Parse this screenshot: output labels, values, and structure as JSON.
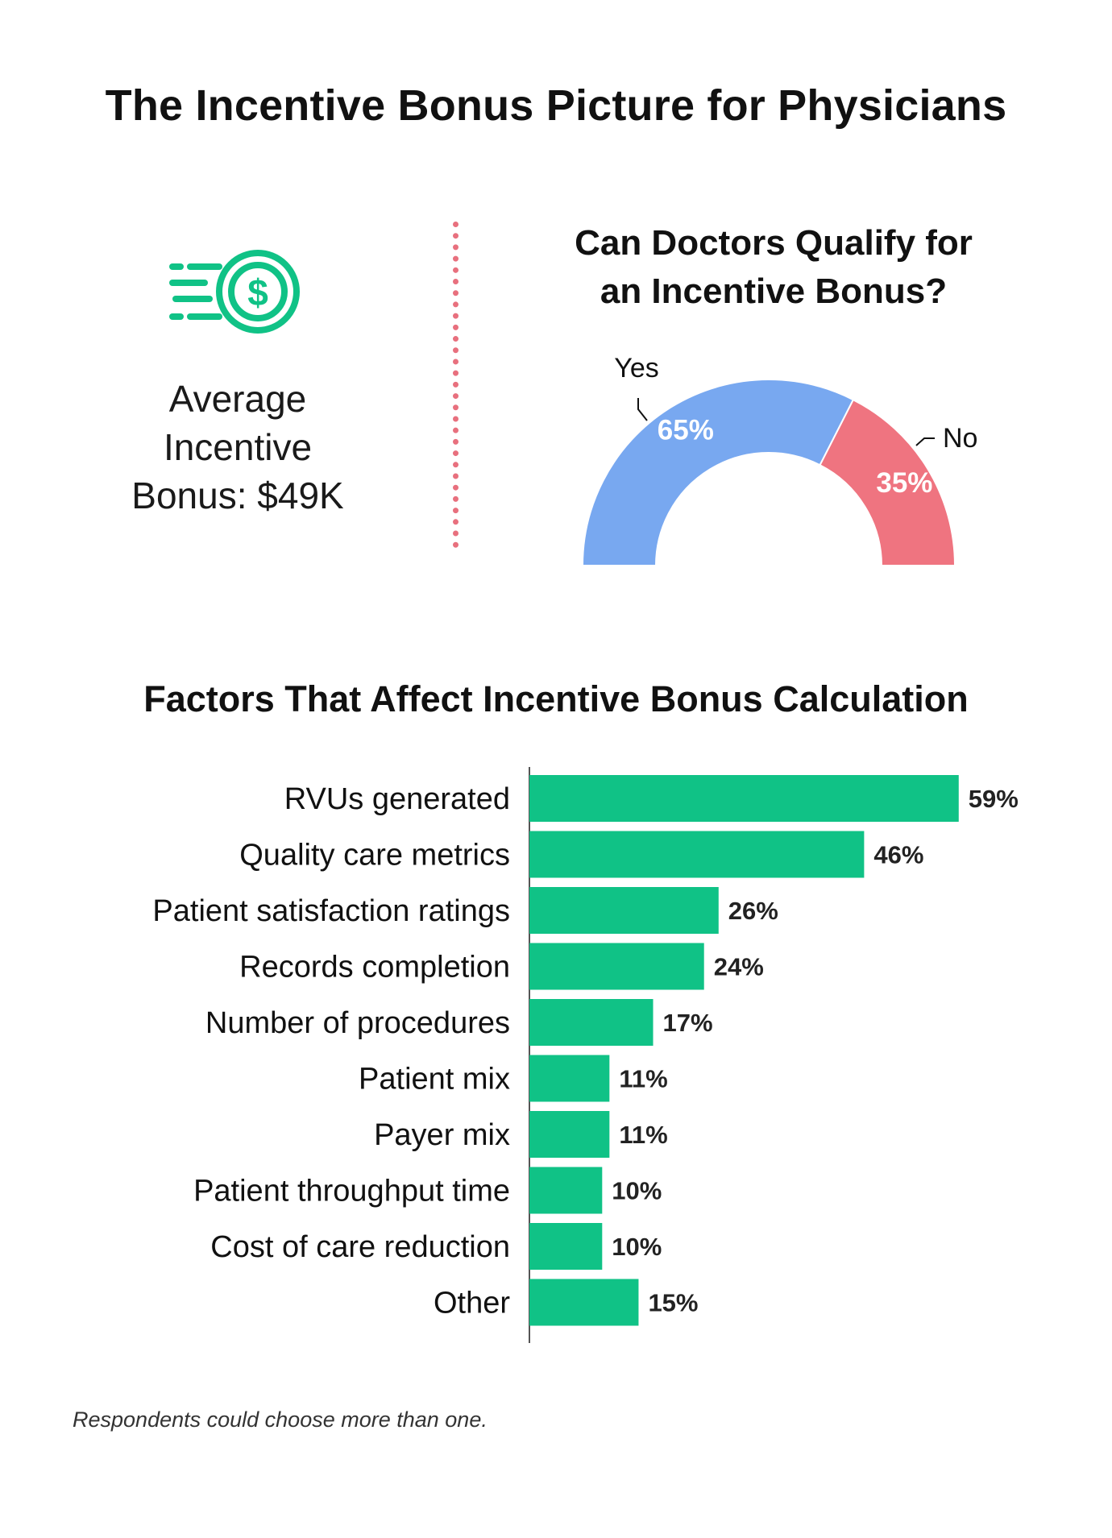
{
  "title": "The Incentive Bonus Picture for Physicians",
  "average": {
    "icon": "dollar-coin-speed-icon",
    "label": "Average Incentive Bonus: $49K",
    "lines": [
      "Average",
      "Incentive",
      "Bonus: $49K"
    ]
  },
  "colors": {
    "green": "#10c286",
    "blue": "#78a8f0",
    "red": "#ef7480",
    "divider": "#e8707e",
    "text": "#111111"
  },
  "donut": {
    "title_lines": [
      "Can Doctors Qualify for",
      "an Incentive Bonus?"
    ],
    "yes_label": "Yes",
    "no_label": "No"
  },
  "bars": {
    "title": "Factors That Affect Incentive Bonus Calculation"
  },
  "footnote": "Respondents could choose more than one.",
  "chart_data": [
    {
      "type": "pie",
      "variant": "half-donut",
      "title": "Can Doctors Qualify for an Incentive Bonus?",
      "categories": [
        "Yes",
        "No"
      ],
      "values": [
        65,
        35
      ],
      "value_labels": [
        "65%",
        "35%"
      ],
      "colors": [
        "#78a8f0",
        "#ef7480"
      ]
    },
    {
      "type": "bar",
      "orientation": "horizontal",
      "title": "Factors That Affect Incentive Bonus Calculation",
      "categories": [
        "RVUs generated",
        "Quality care metrics",
        "Patient satisfaction ratings",
        "Records completion",
        "Number of procedures",
        "Patient mix",
        "Payer mix",
        "Patient throughput time",
        "Cost of care reduction",
        "Other"
      ],
      "values": [
        59,
        46,
        26,
        24,
        17,
        11,
        11,
        10,
        10,
        15
      ],
      "value_labels": [
        "59%",
        "46%",
        "26%",
        "24%",
        "17%",
        "11%",
        "11%",
        "10%",
        "10%",
        "15%"
      ],
      "unit": "%",
      "color": "#10c286",
      "grid": false
    }
  ]
}
